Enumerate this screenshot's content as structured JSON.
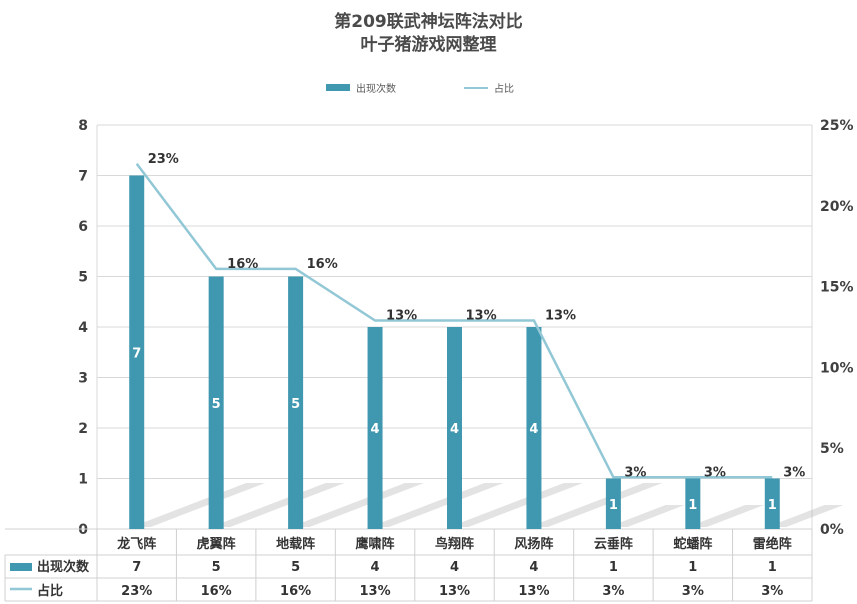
{
  "chart_data": {
    "type": "bar",
    "title": "第209联武神坛阵法对比",
    "subtitle": "叶子猪游戏网整理",
    "categories": [
      "龙飞阵",
      "虎翼阵",
      "地载阵",
      "鹰啸阵",
      "鸟翔阵",
      "风扬阵",
      "云垂阵",
      "蛇蟠阵",
      "雷绝阵"
    ],
    "series": [
      {
        "name": "出现次数",
        "type": "bar",
        "axis": "left",
        "values": [
          7,
          5,
          5,
          4,
          4,
          4,
          1,
          1,
          1
        ],
        "color": "#3f97b0"
      },
      {
        "name": "占比",
        "type": "line",
        "axis": "right",
        "values": [
          0.226,
          0.161,
          0.161,
          0.129,
          0.129,
          0.129,
          0.032,
          0.032,
          0.032
        ],
        "color": "#92c7d6"
      }
    ],
    "value_labels": [
      "7",
      "5",
      "5",
      "4",
      "4",
      "4",
      "1",
      "1",
      "1"
    ],
    "percent_labels": [
      "23%",
      "16%",
      "16%",
      "13%",
      "13%",
      "13%",
      "3%",
      "3%",
      "3%"
    ],
    "y_left": {
      "min": 0,
      "max": 8,
      "ticks": [
        "0",
        "1",
        "2",
        "3",
        "4",
        "5",
        "6",
        "7",
        "8"
      ]
    },
    "y_right": {
      "min": 0,
      "max": 0.25,
      "ticks": [
        "0%",
        "5%",
        "10%",
        "15%",
        "20%",
        "25%"
      ]
    },
    "legend_position": "top",
    "grid": true,
    "data_table": true
  }
}
